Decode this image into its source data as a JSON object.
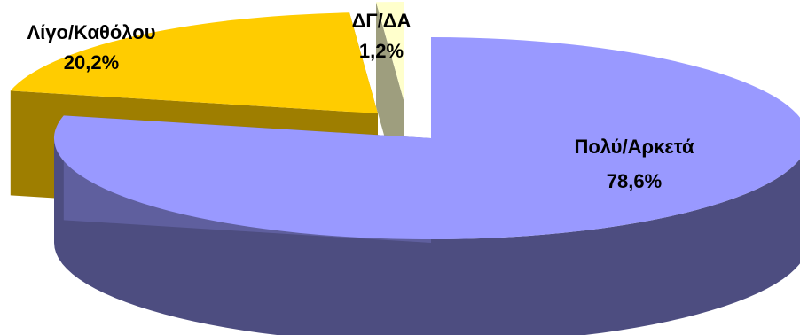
{
  "chart_data": {
    "type": "pie",
    "style": "3d-exploded",
    "title": "",
    "slices": [
      {
        "label": "Πολύ/Αρκετά",
        "value": 78.6,
        "value_label": "78,6%",
        "color": "#9999ff"
      },
      {
        "label": "Λίγο/Καθόλου",
        "value": 20.2,
        "value_label": "20,2%",
        "color": "#ffcc00"
      },
      {
        "label": "ΔΓ/ΔΑ",
        "value": 1.2,
        "value_label": "1,2%",
        "color": "#ffffcc"
      }
    ],
    "legend": "none",
    "data_labels": "label and percent"
  }
}
